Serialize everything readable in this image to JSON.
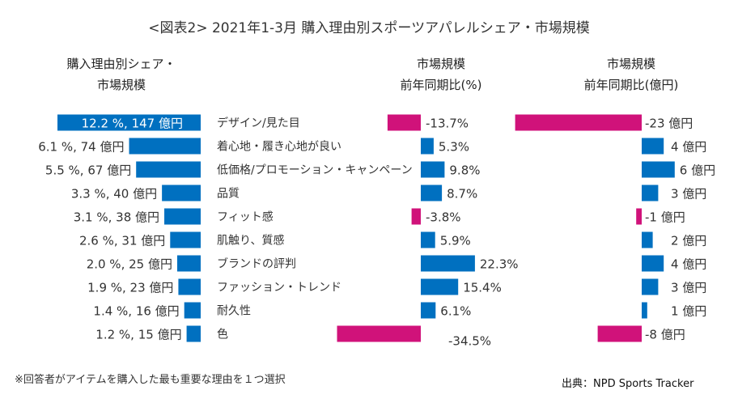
{
  "title": "<図表2> 2021年1-3月 購入理由別スポーツアパレルシェア・市場規模",
  "headers": {
    "share": [
      "購入理由別シェア・",
      "市場規模"
    ],
    "yoy_pct": [
      "市場規模",
      "前年同期比(%)"
    ],
    "yoy_yen": [
      "市場規模",
      "前年同期比(億円)"
    ]
  },
  "colors": {
    "blue": "#0070C0",
    "magenta": "#D0127A",
    "highlight_text": "#ffffff"
  },
  "chart_data": {
    "type": "bar",
    "categories": [
      "デザイン/見た目",
      "着心地・履き心地が良い",
      "低価格/プロモーション・キャンペーン",
      "品質",
      "フィット感",
      "肌触り、質感",
      "ブランドの評判",
      "ファッション・トレンド",
      "耐久性",
      "色"
    ],
    "series": [
      {
        "values": [
          12.2,
          6.1,
          5.5,
          3.3,
          3.1,
          2.6,
          2.0,
          1.9,
          1.4,
          1.2
        ],
        "labels": [
          "12.2 %, 147 億円",
          "6.1 %, 74 億円",
          "5.5 %, 67 億円",
          "3.3 %, 40 億円",
          "3.1 %, 38 億円",
          "2.6 %, 31 億円",
          "2.0 %, 25 億円",
          "1.9 %, 23 億円",
          "1.4 %, 16 億円",
          "1.2 %, 15 億円"
        ]
      },
      {
        "values": [
          -13.7,
          5.3,
          9.8,
          8.7,
          -3.8,
          5.9,
          22.3,
          15.4,
          6.1,
          -34.5
        ],
        "labels": [
          "-13.7%",
          "5.3%",
          "9.8%",
          "8.7%",
          "-3.8%",
          "5.9%",
          "22.3%",
          "15.4%",
          "6.1%",
          "-34.5%"
        ]
      },
      {
        "values": [
          -23,
          4,
          6,
          3,
          -1,
          2,
          4,
          3,
          1,
          -8
        ],
        "labels": [
          "-23 億円",
          "4 億円",
          "6 億円",
          "3 億円",
          "-1 億円",
          "2 億円",
          "4 億円",
          "3 億円",
          "1 億円",
          "-8 億円"
        ]
      }
    ]
  },
  "footnote": "※回答者がアイテムを購入した最も重要な理由を１つ選択",
  "source": "出典：NPD Sports Tracker"
}
